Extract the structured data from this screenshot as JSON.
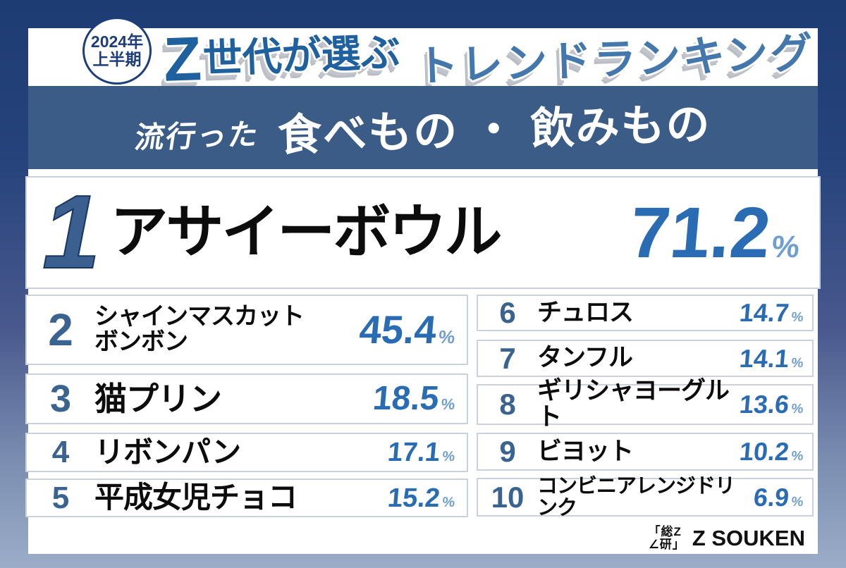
{
  "badge": {
    "line1": "2024年",
    "line2": "上半期"
  },
  "title": {
    "z": "Z",
    "part1_rest": "世代が選ぶ",
    "part2": "トレンドランキング"
  },
  "subtitle": {
    "prefix": "流行った",
    "main": "食べもの ・ 飲みもの"
  },
  "rankings": [
    {
      "rank": "1",
      "name": "アサイーボウル",
      "value": "71.2",
      "unit": "%"
    },
    {
      "rank": "2",
      "name": "シャインマスカットボンボン",
      "name_line1": "シャインマスカット",
      "name_line2": "ボンボン",
      "value": "45.4",
      "unit": "%"
    },
    {
      "rank": "3",
      "name": "猫プリン",
      "value": "18.5",
      "unit": "%"
    },
    {
      "rank": "4",
      "name": "リボンパン",
      "value": "17.1",
      "unit": "%"
    },
    {
      "rank": "5",
      "name": "平成女児チョコ",
      "value": "15.2",
      "unit": "%"
    },
    {
      "rank": "6",
      "name": "チュロス",
      "value": "14.7",
      "unit": "%"
    },
    {
      "rank": "7",
      "name": "タンフル",
      "value": "14.1",
      "unit": "%"
    },
    {
      "rank": "8",
      "name": "ギリシャヨーグルト",
      "value": "13.6",
      "unit": "%"
    },
    {
      "rank": "9",
      "name": "ビヨット",
      "value": "10.2",
      "unit": "%"
    },
    {
      "rank": "10",
      "name": "コンビニアレンジドリンク",
      "value": "6.9",
      "unit": "%"
    }
  ],
  "footer": {
    "mark_line1": "「総Z",
    "mark_line2": "∠研」",
    "brand": "Z SOUKEN"
  },
  "colors": {
    "frame_top": "#1e3c74",
    "frame_bottom": "#9badc8",
    "subtitle_bar": "#3a5c87",
    "rank_number": "#3a648f",
    "percent": "#2a6cb4",
    "percent_sign": "#6e9ed2",
    "title_blue": "#1f609e",
    "title_light_blue": "#4478ad",
    "shadow_gray": "#b9bdc4"
  },
  "chart_data": {
    "type": "table",
    "title": "2024年上半期 Z世代が選ぶトレンドランキング 流行った食べもの・飲みもの",
    "categories": [
      "アサイーボウル",
      "シャインマスカットボンボン",
      "猫プリン",
      "リボンパン",
      "平成女児チョコ",
      "チュロス",
      "タンフル",
      "ギリシャヨーグルト",
      "ビヨット",
      "コンビニアレンジドリンク"
    ],
    "values": [
      71.2,
      45.4,
      18.5,
      17.1,
      15.2,
      14.7,
      14.1,
      13.6,
      10.2,
      6.9
    ],
    "unit": "%",
    "ranks": [
      1,
      2,
      3,
      4,
      5,
      6,
      7,
      8,
      9,
      10
    ]
  }
}
